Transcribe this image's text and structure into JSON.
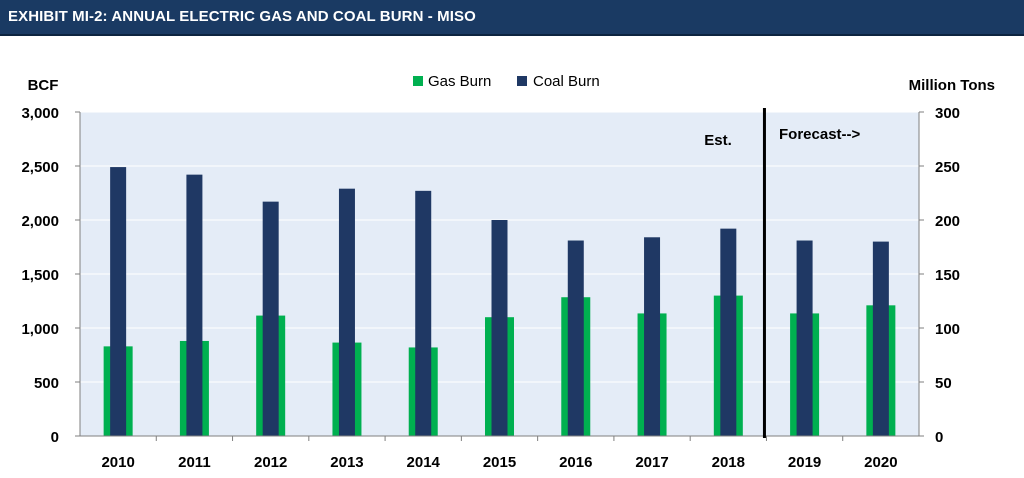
{
  "header": {
    "title": "EXHIBIT MI-2: ANNUAL ELECTRIC GAS AND COAL BURN - MISO"
  },
  "colors": {
    "gas": "#00b050",
    "coal": "#1f3864",
    "plot_bg": "#e4ecf7",
    "header_bg": "#1a3a63"
  },
  "chart_data": {
    "type": "bar",
    "categories": [
      "2010",
      "2011",
      "2012",
      "2013",
      "2014",
      "2015",
      "2016",
      "2017",
      "2018",
      "2019",
      "2020"
    ],
    "series": [
      {
        "name": "Gas Burn",
        "axis": "left",
        "values": [
          830,
          880,
          1115,
          865,
          820,
          1100,
          1285,
          1135,
          1300,
          1135,
          1210
        ]
      },
      {
        "name": "Coal Burn",
        "axis": "right",
        "values": [
          249,
          242,
          217,
          229,
          227,
          200,
          181,
          184,
          192,
          181,
          180
        ]
      }
    ],
    "ylabel_left": "BCF",
    "ylabel_right": "Million Tons",
    "ylim_left": [
      0,
      3000
    ],
    "ylim_right": [
      0,
      300
    ],
    "yticks_left": [
      "0",
      "500",
      "1,000",
      "1,500",
      "2,000",
      "2,500",
      "3,000"
    ],
    "yticks_right": [
      "0",
      "50",
      "100",
      "150",
      "200",
      "250",
      "300"
    ],
    "annotations": {
      "estimate": "Est.",
      "forecast": "Forecast-->"
    },
    "legend": "top-center",
    "grid": true
  }
}
